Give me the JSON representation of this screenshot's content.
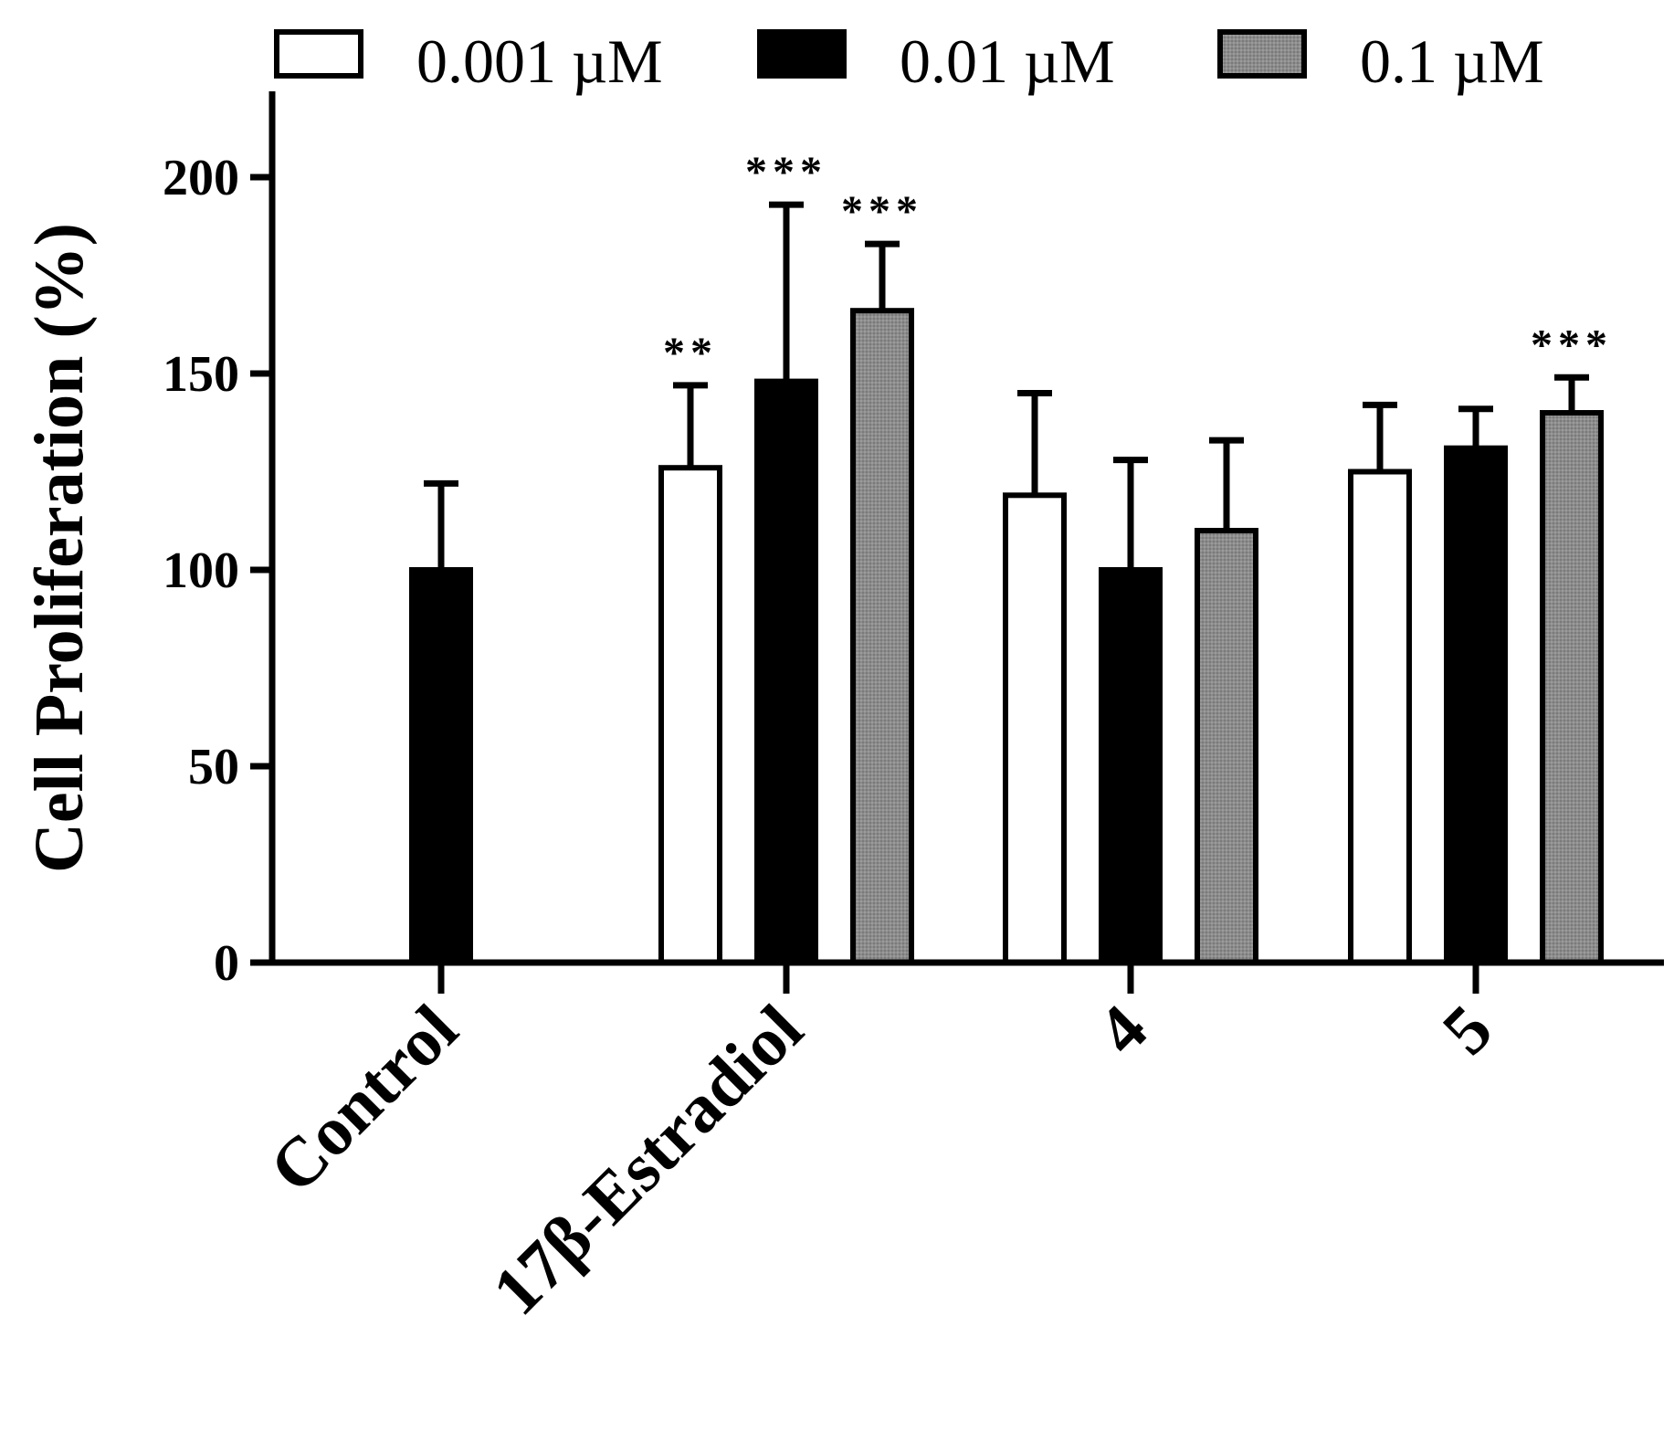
{
  "chart_data": {
    "type": "bar",
    "title": "",
    "xlabel": "",
    "ylabel": "Cell Proliferation (%)",
    "ylim": [
      0,
      220
    ],
    "yticks": [
      0,
      50,
      100,
      150,
      200
    ],
    "grid": false,
    "legend_position": "top",
    "categories": [
      "Control",
      "17β-Estradiol",
      "4",
      "5"
    ],
    "series": [
      {
        "name": "0.001 µM",
        "color": "#ffffff",
        "values": [
          null,
          126,
          119,
          125
        ],
        "errors": [
          null,
          21,
          26,
          17
        ],
        "significance": [
          null,
          "**",
          null,
          null
        ]
      },
      {
        "name": "0.01 µM",
        "color": "#000000",
        "values": [
          100,
          148,
          100,
          131
        ],
        "errors": [
          22,
          45,
          28,
          10
        ],
        "significance": [
          null,
          "***",
          null,
          null
        ]
      },
      {
        "name": "0.1 µM",
        "color": "#8c8c8c",
        "values": [
          null,
          166,
          110,
          140
        ],
        "errors": [
          null,
          17,
          23,
          9
        ],
        "significance": [
          null,
          "***",
          null,
          "***"
        ]
      }
    ]
  }
}
